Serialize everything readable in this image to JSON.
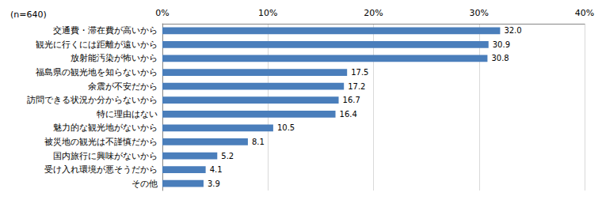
{
  "chart_data": {
    "type": "bar",
    "orientation": "horizontal",
    "annotation": "(n=640)",
    "categories": [
      "交通費・滞在費が高いから",
      "観光に行くには距離が遠いから",
      "放射能汚染が怖いから",
      "福島県の観光地を知らないから",
      "余震が不安だから",
      "訪問できる状況か分からないから",
      "特に理由はない",
      "魅力的な観光地がないから",
      "被災地の観光は不謹慎だから",
      "国内旅行に興味がないから",
      "受け入れ環境が悪そうだから",
      "その他"
    ],
    "values": [
      32.0,
      30.9,
      30.8,
      17.5,
      17.2,
      16.7,
      16.4,
      10.5,
      8.1,
      5.2,
      4.1,
      3.9
    ],
    "value_labels": [
      "32.0",
      "30.9",
      "30.8",
      "17.5",
      "17.2",
      "16.7",
      "16.4",
      "10.5",
      "8.1",
      "5.2",
      "4.1",
      "3.9"
    ],
    "color": "#4a7ebb",
    "xlim": [
      0,
      40
    ],
    "xticks": [
      {
        "value": 0,
        "label": "0%"
      },
      {
        "value": 10,
        "label": "10%"
      },
      {
        "value": 20,
        "label": "20%"
      },
      {
        "value": 30,
        "label": "30%"
      },
      {
        "value": 40,
        "label": "40%"
      }
    ],
    "grid": true,
    "data_labels": true
  }
}
